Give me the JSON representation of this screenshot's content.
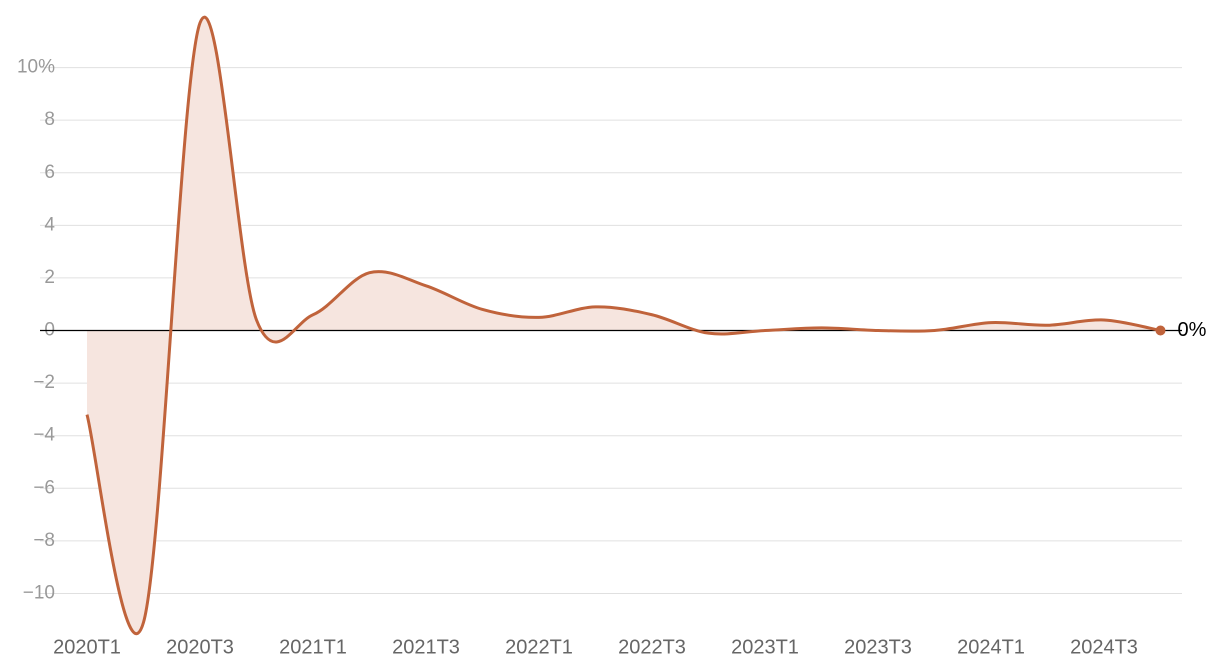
{
  "chart_data": {
    "type": "area",
    "categories": [
      "2020T1",
      null,
      "2020T3",
      null,
      "2021T1",
      null,
      "2021T3",
      null,
      "2022T1",
      null,
      "2022T3",
      null,
      "2023T1",
      null,
      "2023T3",
      null,
      "2024T1",
      null,
      "2024T3",
      null
    ],
    "values": [
      -3.2,
      -11.1,
      11.7,
      0.4,
      0.6,
      2.2,
      1.7,
      0.8,
      0.5,
      0.9,
      0.6,
      -0.1,
      0.0,
      0.1,
      0.0,
      0.0,
      0.3,
      0.2,
      0.4,
      0.0
    ],
    "value_labels": [
      null,
      null,
      null,
      null,
      null,
      null,
      null,
      null,
      null,
      null,
      null,
      null,
      null,
      null,
      null,
      null,
      null,
      null,
      null,
      "0%"
    ],
    "color": "#c0633b",
    "fill_color": "#f6e5df",
    "ylim": [
      -11.2,
      12
    ],
    "yticks": [
      {
        "value": -10,
        "label": "−10"
      },
      {
        "value": -8,
        "label": "−8"
      },
      {
        "value": -6,
        "label": "−6"
      },
      {
        "value": -4,
        "label": "−4"
      },
      {
        "value": -2,
        "label": "−2"
      },
      0,
      2,
      4,
      6,
      8,
      {
        "value": 10,
        "label": "10%"
      }
    ],
    "grid": true
  }
}
